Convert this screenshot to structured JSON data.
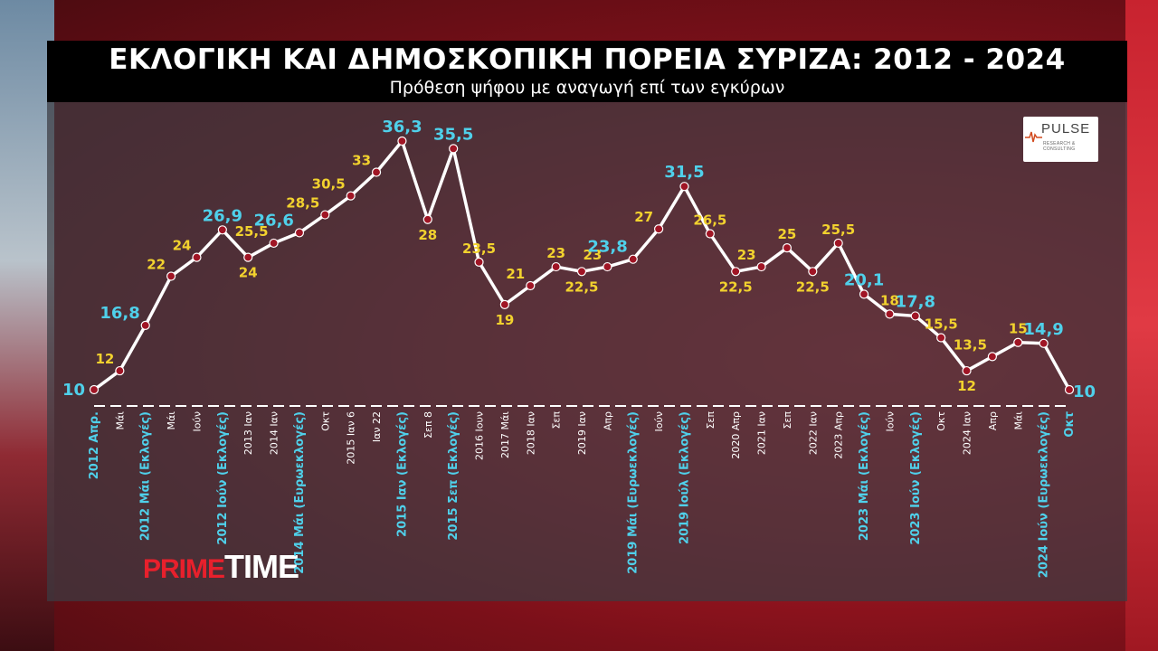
{
  "header": {
    "title": "ΕΚΛΟΓΙΚΗ ΚΑΙ ΔΗΜΟΣΚΟΠΙΚΗ ΠΟΡΕΙΑ ΣΥΡΙΖΑ: 2012 - 2024",
    "subtitle": "Πρόθεση ψήφου με αναγωγή επί των εγκύρων"
  },
  "logo": {
    "name": "PULSE",
    "tagline": "RESEARCH & CONSULTING"
  },
  "brand": {
    "part1": "PRIME",
    "part2": "TIME"
  },
  "colors": {
    "highlight": "#4fd0ea",
    "normal": "#f2d22e",
    "marker": "#a01525",
    "line": "#ffffff"
  },
  "chart_data": {
    "type": "line",
    "title": "ΕΚΛΟΓΙΚΗ ΚΑΙ ΔΗΜΟΣΚΟΠΙΚΗ ΠΟΡΕΙΑ ΣΥΡΙΖΑ: 2012 - 2024",
    "subtitle": "Πρόθεση ψήφου με αναγωγή επί των εγκύρων",
    "ylim": [
      10,
      36.3
    ],
    "points": [
      {
        "x": "2012 Απρ.",
        "y": 10,
        "label": "10",
        "hl": true
      },
      {
        "x": "Μάι",
        "y": 12,
        "label": "12",
        "hl": false
      },
      {
        "x": "2012 Μάι (Εκλογές)",
        "y": 16.8,
        "label": "16,8",
        "hl": true
      },
      {
        "x": "Μάι",
        "y": 22,
        "label": "22",
        "hl": false
      },
      {
        "x": "Ιούν",
        "y": 24,
        "label": "24",
        "hl": false
      },
      {
        "x": "2012 Ιούν (Εκλογές)",
        "y": 26.9,
        "label": "26,9",
        "hl": true
      },
      {
        "x": "2013 Ιαν",
        "y": 24,
        "label": "24",
        "hl": false
      },
      {
        "x": "2014 Ιαν",
        "y": 25.5,
        "label": "25,5",
        "hl": false
      },
      {
        "x": "2014 Μάι (Ευρωεκλογές)",
        "y": 26.6,
        "label": "26,6",
        "hl": true
      },
      {
        "x": "Οκτ",
        "y": 28.5,
        "label": "28,5",
        "hl": false
      },
      {
        "x": "2015 Ιαν 6",
        "y": 30.5,
        "label": "30,5",
        "hl": false
      },
      {
        "x": "Ιαν 22",
        "y": 33,
        "label": "33",
        "hl": false
      },
      {
        "x": "2015 Ιαν (Εκλογές)",
        "y": 36.3,
        "label": "36,3",
        "hl": true
      },
      {
        "x": "Σεπ 8",
        "y": 28,
        "label": "28",
        "hl": false
      },
      {
        "x": "2015 Σεπ (Εκλογές)",
        "y": 35.5,
        "label": "35,5",
        "hl": true
      },
      {
        "x": "2016 Ιουν",
        "y": 23.5,
        "label": "23,5",
        "hl": false
      },
      {
        "x": "2017 Μάι",
        "y": 19,
        "label": "19",
        "hl": false
      },
      {
        "x": "2018 Ιαν",
        "y": 21,
        "label": "21",
        "hl": false
      },
      {
        "x": "Σεπ",
        "y": 23,
        "label": "23",
        "hl": false
      },
      {
        "x": "2019 Ιαν",
        "y": 22.5,
        "label": "22,5",
        "hl": false
      },
      {
        "x": "Απρ",
        "y": 23,
        "label": "23",
        "hl": false
      },
      {
        "x": "2019 Μάι (Ευρωεκλογές)",
        "y": 23.8,
        "label": "23,8",
        "hl": true
      },
      {
        "x": "Ιούν",
        "y": 27,
        "label": "27",
        "hl": false
      },
      {
        "x": "2019 Ιούλ (Εκλογές)",
        "y": 31.5,
        "label": "31,5",
        "hl": true
      },
      {
        "x": "Σεπ",
        "y": 26.5,
        "label": "26,5",
        "hl": false
      },
      {
        "x": "2020 Απρ",
        "y": 22.5,
        "label": "22,5",
        "hl": false
      },
      {
        "x": "2021 Ιαν",
        "y": 23,
        "label": "23",
        "hl": false
      },
      {
        "x": "Σεπ",
        "y": 25,
        "label": "25",
        "hl": false
      },
      {
        "x": "2022 Ιαν",
        "y": 22.5,
        "label": "22,5",
        "hl": false
      },
      {
        "x": "2023 Απρ",
        "y": 25.5,
        "label": "25,5",
        "hl": false
      },
      {
        "x": "2023 Μάι (Εκλογές)",
        "y": 20.1,
        "label": "20,1",
        "hl": true
      },
      {
        "x": "Ιούν",
        "y": 18,
        "label": "18",
        "hl": false
      },
      {
        "x": "2023 Ιούν (Εκλογές)",
        "y": 17.8,
        "label": "17,8",
        "hl": true
      },
      {
        "x": "Οκτ",
        "y": 15.5,
        "label": "15,5",
        "hl": false
      },
      {
        "x": "2024 Ιαν",
        "y": 12,
        "label": "12",
        "hl": false
      },
      {
        "x": "Απρ",
        "y": 13.5,
        "label": "13,5",
        "hl": false
      },
      {
        "x": "Μάι",
        "y": 15,
        "label": "15",
        "hl": false
      },
      {
        "x": "2024 Ιούν (Ευρωεκλογές)",
        "y": 14.9,
        "label": "14,9",
        "hl": true
      },
      {
        "x": "Οκτ",
        "y": 10,
        "label": "10",
        "hl": true
      }
    ]
  }
}
